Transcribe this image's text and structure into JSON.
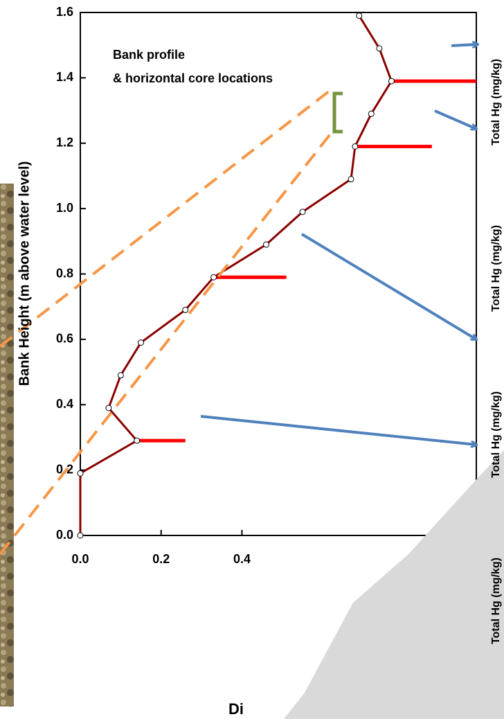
{
  "chart_data": {
    "type": "line",
    "y_label": "Bank Height (m above water level)",
    "x_label": "Di",
    "annotation": [
      "Bank profile",
      "& horizontal core locations"
    ],
    "side_labels": [
      "Total Hg (mg/kg)",
      "Total Hg (mg/kg)",
      "Total Hg (mg/kg)",
      "Total Hg (mg/kg)"
    ],
    "xlim": [
      0,
      0.98
    ],
    "ylim": [
      0,
      1.6
    ],
    "xticks": [
      {
        "value": 0,
        "label": "0.0"
      },
      {
        "value": 0.2,
        "label": "0.2"
      },
      {
        "value": 0.4,
        "label": "0.4"
      }
    ],
    "yticks": [
      {
        "value": 0,
        "label": "0.0"
      },
      {
        "value": 0.2,
        "label": "0.2"
      },
      {
        "value": 0.4,
        "label": "0.4"
      },
      {
        "value": 0.6,
        "label": "0.6"
      },
      {
        "value": 0.8,
        "label": "0.8"
      },
      {
        "value": 1.0,
        "label": "1.0"
      },
      {
        "value": 1.2,
        "label": "1.2"
      },
      {
        "value": 1.4,
        "label": "1.4"
      },
      {
        "value": 1.6,
        "label": "1.6"
      }
    ],
    "series": [
      {
        "color": "#8b0000",
        "x": [
          0.69,
          0.74,
          0.77,
          0.72,
          0.68,
          0.67,
          0.55,
          0.46,
          0.33,
          0.26,
          0.15,
          0.1,
          0.07,
          0.14,
          0,
          0
        ],
        "values": [
          1.59,
          1.49,
          1.39,
          1.29,
          1.19,
          1.09,
          0.99,
          0.89,
          0.79,
          0.69,
          0.59,
          0.49,
          0.39,
          0.29,
          0.19,
          0
        ]
      }
    ],
    "cores": {
      "color": "#ff0000",
      "heights": [
        1.39,
        1.19,
        0.79,
        0.29
      ],
      "x_start": [
        0.77,
        0.68,
        0.33,
        0.14
      ],
      "x_end": [
        0.98,
        0.87,
        0.51,
        0.26
      ]
    }
  }
}
